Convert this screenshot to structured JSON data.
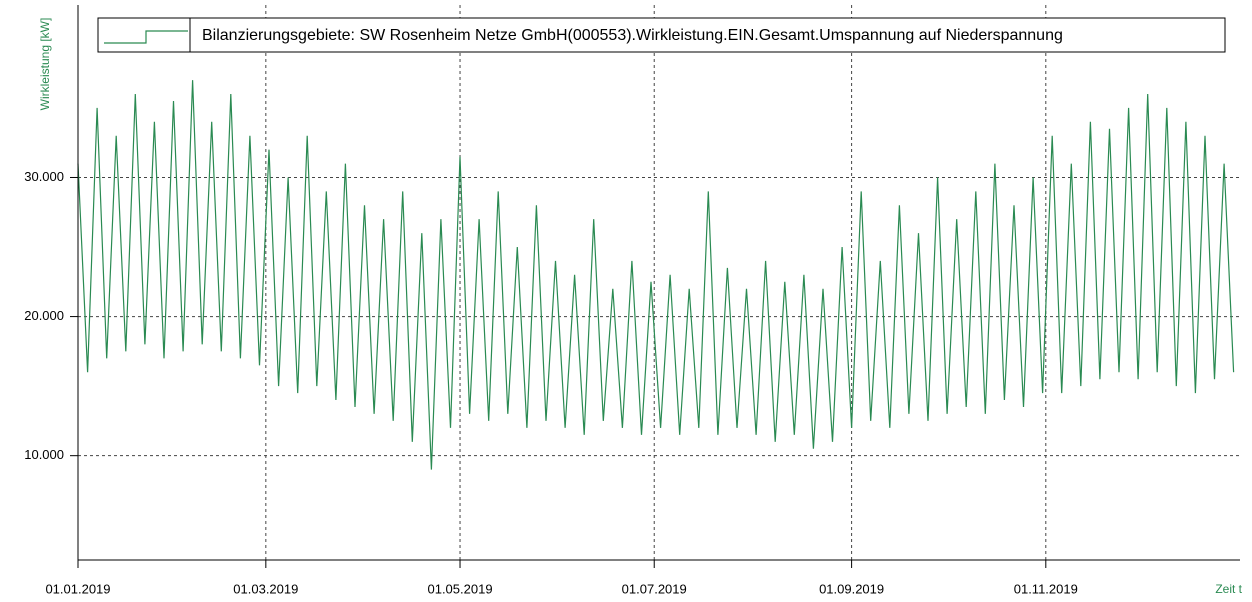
{
  "chart_data": {
    "type": "line",
    "legend": "Bilanzierungsgebiete: SW Rosenheim Netze GmbH(000553).Wirkleistung.EIN.Gesamt.Umspannung auf Niederspannung",
    "y_label": "Wirkleistung [kW]",
    "x_label": "Zeit t",
    "color": "#2a8a52",
    "grid": true,
    "xlim": [
      "01.01.2019",
      "31.12.2019"
    ],
    "xticks": [
      "01.01.2019",
      "01.03.2019",
      "01.05.2019",
      "01.07.2019",
      "01.09.2019",
      "01.11.2019"
    ],
    "ylim": [
      2500,
      42400
    ],
    "yticks": [
      {
        "value": 10000,
        "label": "10.000"
      },
      {
        "value": 20000,
        "label": "20.000"
      },
      {
        "value": 30000,
        "label": "30.000"
      }
    ],
    "x": [
      "01.01.2019",
      "04.01.2019",
      "07.01.2019",
      "10.01.2019",
      "13.01.2019",
      "16.01.2019",
      "19.01.2019",
      "22.01.2019",
      "25.01.2019",
      "28.01.2019",
      "31.01.2019",
      "03.02.2019",
      "06.02.2019",
      "09.02.2019",
      "12.02.2019",
      "15.02.2019",
      "18.02.2019",
      "21.02.2019",
      "24.02.2019",
      "27.02.2019",
      "02.03.2019",
      "05.03.2019",
      "08.03.2019",
      "11.03.2019",
      "14.03.2019",
      "17.03.2019",
      "20.03.2019",
      "23.03.2019",
      "26.03.2019",
      "29.03.2019",
      "01.04.2019",
      "04.04.2019",
      "07.04.2019",
      "10.04.2019",
      "13.04.2019",
      "16.04.2019",
      "19.04.2019",
      "22.04.2019",
      "25.04.2019",
      "28.04.2019",
      "01.05.2019",
      "04.05.2019",
      "07.05.2019",
      "10.05.2019",
      "13.05.2019",
      "16.05.2019",
      "19.05.2019",
      "22.05.2019",
      "25.05.2019",
      "28.05.2019",
      "31.05.2019",
      "03.06.2019",
      "06.06.2019",
      "09.06.2019",
      "12.06.2019",
      "15.06.2019",
      "18.06.2019",
      "21.06.2019",
      "24.06.2019",
      "27.06.2019",
      "30.06.2019",
      "03.07.2019",
      "06.07.2019",
      "09.07.2019",
      "12.07.2019",
      "15.07.2019",
      "18.07.2019",
      "21.07.2019",
      "24.07.2019",
      "27.07.2019",
      "30.07.2019",
      "02.08.2019",
      "05.08.2019",
      "08.08.2019",
      "11.08.2019",
      "14.08.2019",
      "17.08.2019",
      "20.08.2019",
      "23.08.2019",
      "26.08.2019",
      "29.08.2019",
      "01.09.2019",
      "04.09.2019",
      "07.09.2019",
      "10.09.2019",
      "13.09.2019",
      "16.09.2019",
      "19.09.2019",
      "22.09.2019",
      "25.09.2019",
      "28.09.2019",
      "01.10.2019",
      "04.10.2019",
      "07.10.2019",
      "10.10.2019",
      "13.10.2019",
      "16.10.2019",
      "19.10.2019",
      "22.10.2019",
      "25.10.2019",
      "28.10.2019",
      "31.10.2019",
      "03.11.2019",
      "06.11.2019",
      "09.11.2019",
      "12.11.2019",
      "15.11.2019",
      "18.11.2019",
      "21.11.2019",
      "24.11.2019",
      "27.11.2019",
      "30.11.2019",
      "03.12.2019",
      "06.12.2019",
      "09.12.2019",
      "12.12.2019",
      "15.12.2019",
      "18.12.2019",
      "21.12.2019",
      "24.12.2019",
      "27.12.2019",
      "30.12.2019"
    ],
    "values": [
      31000,
      16000,
      35000,
      17000,
      33000,
      17500,
      36000,
      18000,
      34000,
      17000,
      35500,
      17500,
      37000,
      18000,
      34000,
      17500,
      36000,
      17000,
      33000,
      16500,
      32000,
      15000,
      30000,
      14500,
      33000,
      15000,
      29000,
      14000,
      31000,
      13500,
      28000,
      13000,
      27000,
      12500,
      29000,
      11000,
      26000,
      9000,
      27000,
      12000,
      31500,
      13000,
      27000,
      12500,
      29000,
      13000,
      25000,
      12000,
      28000,
      12500,
      24000,
      12000,
      23000,
      11500,
      27000,
      12500,
      22000,
      12000,
      24000,
      11500,
      22500,
      12000,
      23000,
      11500,
      22000,
      12000,
      29000,
      11500,
      23500,
      12000,
      22000,
      11500,
      24000,
      11000,
      22500,
      11500,
      23000,
      10500,
      22000,
      11000,
      25000,
      12000,
      29000,
      12500,
      24000,
      12000,
      28000,
      13000,
      26000,
      12500,
      30000,
      13000,
      27000,
      13500,
      29000,
      13000,
      31000,
      14000,
      28000,
      13500,
      30000,
      14500,
      33000,
      14500,
      31000,
      15000,
      34000,
      15500,
      33500,
      16000,
      35000,
      15500,
      36000,
      16000,
      35000,
      15000,
      34000,
      14500,
      33000,
      15500,
      31000,
      16000
    ]
  }
}
